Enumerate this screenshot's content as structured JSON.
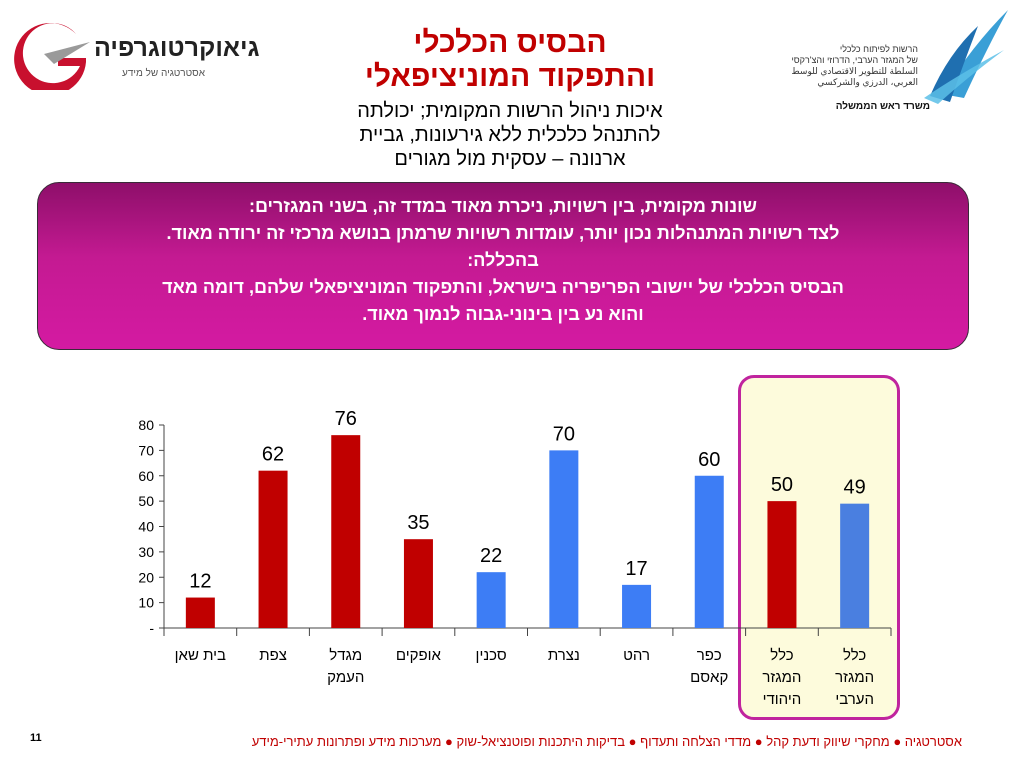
{
  "logos": {
    "left": {
      "brand": "גיאוקרטוגרפיה",
      "tagline": "אסטרטגיה של מידע"
    },
    "right": {
      "lines": [
        "הרשות לפיתוח כלכלי",
        "של המגזר הערבי, הדרוזי והצ'רקסי",
        "السلطة للتطوير الاقتصادي للوسط",
        "العربي، الدرزي والشركسي"
      ],
      "office": "משרד ראש הממשלה"
    }
  },
  "header": {
    "title_lines": [
      "הבסיס הכלכלי",
      "והתפקוד המוניציפאלי"
    ],
    "subtitle_lines": [
      "איכות ניהול הרשות המקומית; יכולתה",
      "להתנהל כלכלית ללא גירעונות, גביית",
      "ארנונה – עסקית מול מגורים"
    ]
  },
  "summary": {
    "lines": [
      "שונות מקומית, בין רשויות, ניכרת מאוד במדד זה, בשני המגזרים:",
      "לצד רשויות המתנהלות נכון יותר, עומדות רשויות שרמתן בנושא מרכזי זה ירודה מאוד.",
      "בהכללה:",
      "הבסיס הכלכלי של יישובי הפריפריה בישראל, והתפקוד המוניציפאלי שלהם, דומה מאד",
      "והוא נע בין בינוני-גבוה לנמוך מאוד."
    ]
  },
  "chart_data": {
    "type": "bar",
    "categories": [
      "בית שאן",
      "צפת",
      "מגדל העמק",
      "אופקים",
      "סכנין",
      "נצרת",
      "רהט",
      "כפר קאסם",
      "כלל המגזר היהודי",
      "כלל המגזר הערבי"
    ],
    "category_lines": [
      [
        "בית שאן"
      ],
      [
        "צפת"
      ],
      [
        "מגדל",
        "העמק"
      ],
      [
        "אופקים"
      ],
      [
        "סכנין"
      ],
      [
        "נצרת"
      ],
      [
        "רהט"
      ],
      [
        "כפר",
        "קאסם"
      ],
      [
        "כלל",
        "המגזר",
        "היהודי"
      ],
      [
        "כלל",
        "המגזר",
        "הערבי"
      ]
    ],
    "values": [
      12,
      62,
      76,
      35,
      22,
      70,
      17,
      60,
      50,
      49
    ],
    "colors": [
      "#c00000",
      "#c00000",
      "#c00000",
      "#c00000",
      "#3d7df5",
      "#3d7df5",
      "#3d7df5",
      "#3d7df5",
      "#c00000",
      "#4a7fe0"
    ],
    "ylim": [
      0,
      80
    ],
    "yticks": [
      "-",
      "10",
      "20",
      "30",
      "40",
      "50",
      "60",
      "70",
      "80"
    ],
    "grid": false,
    "legend": "none"
  },
  "footer": {
    "text": "אסטרטגיה ● מחקרי שיווק ודעת קהל ● מדדי הצלחה ותעדוף ● בדיקות היתכנות ופוטנציאל-שוק ● מערכות מידע ופתרונות עתירי-מידע",
    "page_number": "11"
  },
  "colors": {
    "title": "#c00000",
    "box_start": "#8e0f6a",
    "box_end": "#d41aa2",
    "jewish_sector": "#c00000",
    "arab_sector": "#3d7df5"
  }
}
